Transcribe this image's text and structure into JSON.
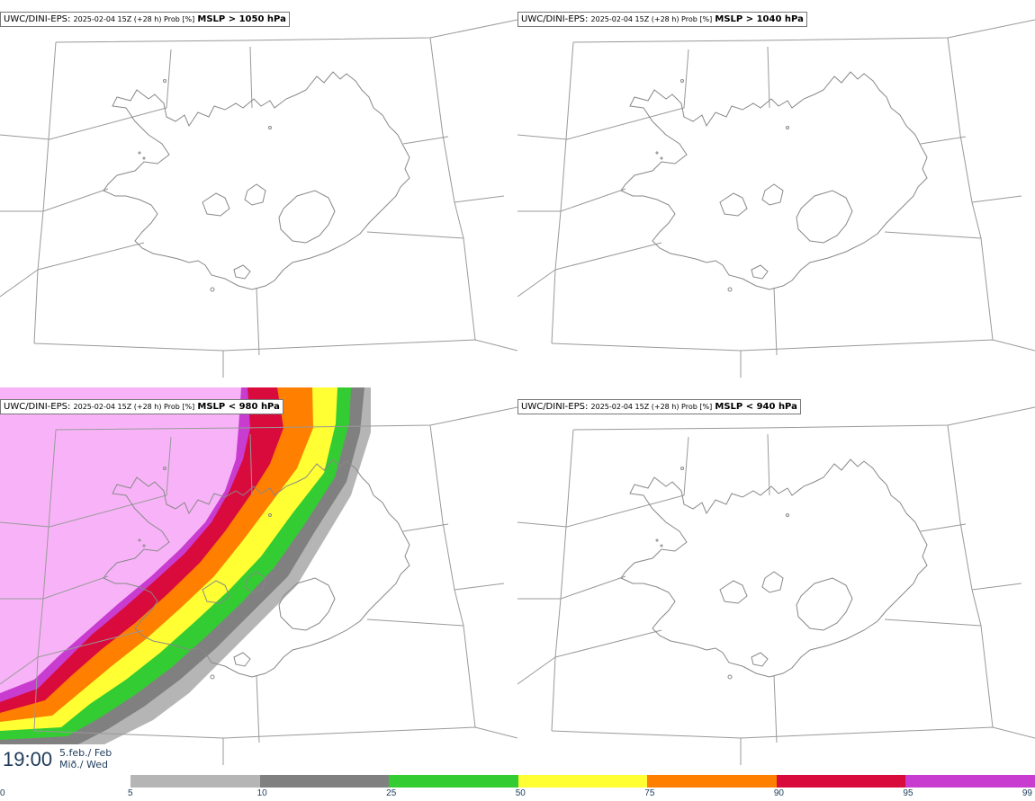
{
  "panels": [
    {
      "model": "UWC/DINI-EPS",
      "run": "2025-02-04 15Z (+28 h) Prob [%]",
      "field": "MSLP > 1050 hPa"
    },
    {
      "model": "UWC/DINI-EPS",
      "run": "2025-02-04 15Z (+28 h) Prob [%]",
      "field": "MSLP > 1040 hPa"
    },
    {
      "model": "UWC/DINI-EPS",
      "run": "2025-02-04 15Z (+28 h) Prob [%]",
      "field": "MSLP < 980 hPa"
    },
    {
      "model": "UWC/DINI-EPS",
      "run": "2025-02-04 15Z (+28 h) Prob [%]",
      "field": "MSLP < 940 hPa"
    }
  ],
  "valid_time": {
    "time": "19:00",
    "date_line1": "5.feb./ Feb",
    "date_line2": "Mið./ Wed"
  },
  "legend": {
    "labels": [
      "0",
      "5",
      "10",
      "25",
      "50",
      "75",
      "90",
      "95",
      "99"
    ],
    "colors": [
      "#ffffff",
      "#b5b5b5",
      "#808080",
      "#33cc33",
      "#ffff33",
      "#ff7f00",
      "#d90a3c",
      "#c83ccf",
      "#f8b3f8"
    ]
  },
  "colors": {
    "coast": "#888888",
    "grid": "#999999",
    "text": "#1e3b5a"
  }
}
